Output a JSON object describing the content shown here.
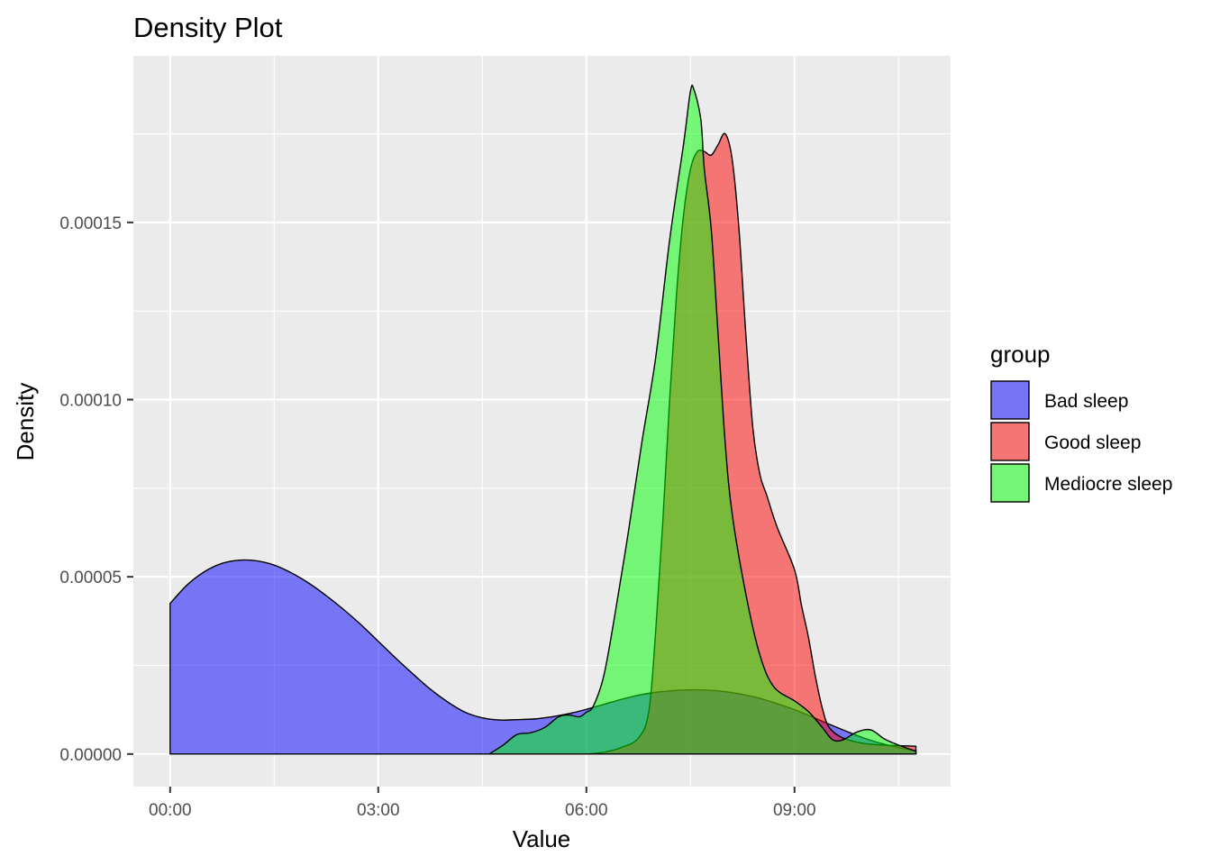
{
  "chart_data": {
    "type": "area",
    "title": "Density Plot",
    "xlabel": "Value",
    "ylabel": "Density",
    "x_unit": "hours",
    "xlim": [
      -0.53,
      11.25
    ],
    "ylim": [
      -9.2e-06,
      0.000197
    ],
    "x_ticks": [
      {
        "value": 0,
        "label": "00:00"
      },
      {
        "value": 3,
        "label": "03:00"
      },
      {
        "value": 6,
        "label": "06:00"
      },
      {
        "value": 9,
        "label": "09:00"
      }
    ],
    "y_ticks": [
      {
        "value": 0,
        "label": "0.00000"
      },
      {
        "value": 5e-05,
        "label": "0.00005"
      },
      {
        "value": 0.0001,
        "label": "0.00010"
      },
      {
        "value": 0.00015,
        "label": "0.00015"
      }
    ],
    "grid": true,
    "legend": {
      "title": "group",
      "position": "right"
    },
    "series": [
      {
        "name": "Bad sleep",
        "color": "#0000ff",
        "points": [
          [
            0,
            4.25e-05
          ],
          [
            0.25,
            4.78e-05
          ],
          [
            0.5,
            5.15e-05
          ],
          [
            0.75,
            5.38e-05
          ],
          [
            1.0,
            5.47e-05
          ],
          [
            1.25,
            5.45e-05
          ],
          [
            1.5,
            5.33e-05
          ],
          [
            1.75,
            5.11e-05
          ],
          [
            2.0,
            4.82e-05
          ],
          [
            2.25,
            4.47e-05
          ],
          [
            2.5,
            4.08e-05
          ],
          [
            2.75,
            3.65e-05
          ],
          [
            3.0,
            3.18e-05
          ],
          [
            3.25,
            2.71e-05
          ],
          [
            3.5,
            2.26e-05
          ],
          [
            3.75,
            1.83e-05
          ],
          [
            4.0,
            1.47e-05
          ],
          [
            4.25,
            1.18e-05
          ],
          [
            4.5,
            1.02e-05
          ],
          [
            4.75,
            9.6e-06
          ],
          [
            5.0,
            9.7e-06
          ],
          [
            5.25,
            9.9e-06
          ],
          [
            5.5,
            1.05e-05
          ],
          [
            5.75,
            1.14e-05
          ],
          [
            6.0,
            1.26e-05
          ],
          [
            6.25,
            1.4e-05
          ],
          [
            6.5,
            1.54e-05
          ],
          [
            6.75,
            1.66e-05
          ],
          [
            7.0,
            1.74e-05
          ],
          [
            7.25,
            1.79e-05
          ],
          [
            7.5,
            1.81e-05
          ],
          [
            7.75,
            1.8e-05
          ],
          [
            8.0,
            1.76e-05
          ],
          [
            8.25,
            1.68e-05
          ],
          [
            8.5,
            1.57e-05
          ],
          [
            8.75,
            1.42e-05
          ],
          [
            9.0,
            1.25e-05
          ],
          [
            9.25,
            1.05e-05
          ],
          [
            9.5,
            8.4e-06
          ],
          [
            9.75,
            6.4e-06
          ],
          [
            10.0,
            4.5e-06
          ],
          [
            10.25,
            3e-06
          ],
          [
            10.5,
            1.8e-06
          ],
          [
            10.75,
            9e-07
          ]
        ]
      },
      {
        "name": "Good sleep",
        "color": "#ff0000",
        "points": [
          [
            6.0,
            0
          ],
          [
            6.25,
            5e-07
          ],
          [
            6.5,
            1.8e-06
          ],
          [
            6.75,
            4.5e-06
          ],
          [
            6.9,
            1.2e-05
          ],
          [
            7.0,
            3.5e-05
          ],
          [
            7.1,
            6.5e-05
          ],
          [
            7.2,
            0.0001
          ],
          [
            7.3,
            0.00013
          ],
          [
            7.4,
            0.000152
          ],
          [
            7.5,
            0.000165
          ],
          [
            7.6,
            0.00017
          ],
          [
            7.7,
            0.00017
          ],
          [
            7.8,
            0.000169
          ],
          [
            7.9,
            0.000172
          ],
          [
            8.0,
            0.000175
          ],
          [
            8.1,
            0.000168
          ],
          [
            8.2,
            0.000148
          ],
          [
            8.3,
            0.000118
          ],
          [
            8.4,
            9.2e-05
          ],
          [
            8.5,
            7.9e-05
          ],
          [
            8.6,
            7.3e-05
          ],
          [
            8.75,
            6.4e-05
          ],
          [
            9.0,
            5.2e-05
          ],
          [
            9.1,
            4.2e-05
          ],
          [
            9.2,
            3.3e-05
          ],
          [
            9.3,
            2.2e-05
          ],
          [
            9.4,
            1.3e-05
          ],
          [
            9.5,
            7.5e-06
          ],
          [
            9.7,
            4.5e-06
          ],
          [
            10.0,
            3e-06
          ],
          [
            10.3,
            2.5e-06
          ],
          [
            10.75,
            2.2e-06
          ]
        ]
      },
      {
        "name": "Mediocre sleep",
        "color": "#00ff00",
        "points": [
          [
            4.6,
            0
          ],
          [
            4.8,
            2.5e-06
          ],
          [
            5.0,
            5.5e-06
          ],
          [
            5.2,
            6e-06
          ],
          [
            5.4,
            7.5e-06
          ],
          [
            5.6,
            1.05e-05
          ],
          [
            5.75,
            1.1e-05
          ],
          [
            5.9,
            1.05e-05
          ],
          [
            6.0,
            1.18e-05
          ],
          [
            6.1,
            1.35e-05
          ],
          [
            6.25,
            2.2e-05
          ],
          [
            6.4,
            3.8e-05
          ],
          [
            6.6,
            6.2e-05
          ],
          [
            6.8,
            8.8e-05
          ],
          [
            7.0,
            0.000112
          ],
          [
            7.2,
            0.000145
          ],
          [
            7.4,
            0.000172
          ],
          [
            7.5,
            0.000187
          ],
          [
            7.55,
            0.0001875
          ],
          [
            7.65,
            0.000179
          ],
          [
            7.7,
            0.000165
          ],
          [
            7.8,
            0.000148
          ],
          [
            7.9,
            0.000118
          ],
          [
            8.0,
            8.8e-05
          ],
          [
            8.1,
            6.8e-05
          ],
          [
            8.3,
            4.5e-05
          ],
          [
            8.5,
            2.8e-05
          ],
          [
            8.7,
            1.9e-05
          ],
          [
            9.0,
            1.5e-05
          ],
          [
            9.2,
            1.2e-05
          ],
          [
            9.4,
            7.5e-06
          ],
          [
            9.55,
            4e-06
          ],
          [
            9.7,
            4e-06
          ],
          [
            9.9,
            6.2e-06
          ],
          [
            10.1,
            6.8e-06
          ],
          [
            10.3,
            4.2e-06
          ],
          [
            10.5,
            2.5e-06
          ],
          [
            10.75,
            8e-07
          ]
        ]
      }
    ]
  }
}
